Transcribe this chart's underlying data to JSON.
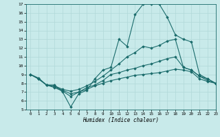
{
  "title": "",
  "xlabel": "Humidex (Indice chaleur)",
  "background_color": "#c8eaea",
  "grid_color": "#b0d8d8",
  "line_color": "#1a6b6b",
  "xlim": [
    -0.5,
    23
  ],
  "ylim": [
    5,
    17
  ],
  "xticks": [
    0,
    1,
    2,
    3,
    4,
    5,
    6,
    7,
    8,
    9,
    10,
    11,
    12,
    13,
    14,
    15,
    16,
    17,
    18,
    19,
    20,
    21,
    22,
    23
  ],
  "yticks": [
    5,
    6,
    7,
    8,
    9,
    10,
    11,
    12,
    13,
    14,
    15,
    16,
    17
  ],
  "lines": [
    {
      "x": [
        0,
        1,
        2,
        3,
        4,
        5,
        6,
        7,
        8,
        9,
        10,
        11,
        12,
        13,
        14,
        15,
        16,
        17,
        18,
        19,
        20,
        21,
        22,
        23
      ],
      "y": [
        9,
        8.5,
        7.8,
        7.8,
        7.0,
        5.3,
        6.8,
        7.2,
        8.5,
        9.5,
        9.8,
        13.0,
        12.2,
        15.8,
        17.0,
        17.0,
        17.0,
        15.5,
        13.5,
        13.0,
        12.7,
        9.0,
        8.5,
        8.0
      ]
    },
    {
      "x": [
        0,
        1,
        2,
        3,
        4,
        5,
        6,
        7,
        8,
        9,
        10,
        11,
        12,
        13,
        14,
        15,
        16,
        17,
        18,
        19,
        20,
        21,
        22,
        23
      ],
      "y": [
        9,
        8.5,
        7.8,
        7.7,
        7.3,
        7.1,
        7.3,
        7.7,
        8.2,
        8.8,
        9.5,
        10.2,
        11.0,
        11.5,
        12.2,
        12.0,
        12.3,
        12.8,
        13.0,
        9.8,
        9.5,
        8.8,
        8.5,
        8.0
      ]
    },
    {
      "x": [
        0,
        1,
        2,
        3,
        4,
        5,
        6,
        7,
        8,
        9,
        10,
        11,
        12,
        13,
        14,
        15,
        16,
        17,
        18,
        19,
        20,
        21,
        22,
        23
      ],
      "y": [
        9,
        8.5,
        7.8,
        7.6,
        7.2,
        6.8,
        7.0,
        7.5,
        7.8,
        8.3,
        9.0,
        9.2,
        9.5,
        9.7,
        10.0,
        10.2,
        10.5,
        10.8,
        11.0,
        9.8,
        9.5,
        8.8,
        8.3,
        8.0
      ]
    },
    {
      "x": [
        0,
        1,
        2,
        3,
        4,
        5,
        6,
        7,
        8,
        9,
        10,
        11,
        12,
        13,
        14,
        15,
        16,
        17,
        18,
        19,
        20,
        21,
        22,
        23
      ],
      "y": [
        9,
        8.6,
        7.8,
        7.5,
        7.1,
        6.5,
        7.0,
        7.3,
        7.7,
        8.0,
        8.3,
        8.5,
        8.7,
        8.9,
        9.0,
        9.1,
        9.2,
        9.4,
        9.6,
        9.5,
        9.3,
        8.5,
        8.2,
        8.0
      ]
    }
  ]
}
